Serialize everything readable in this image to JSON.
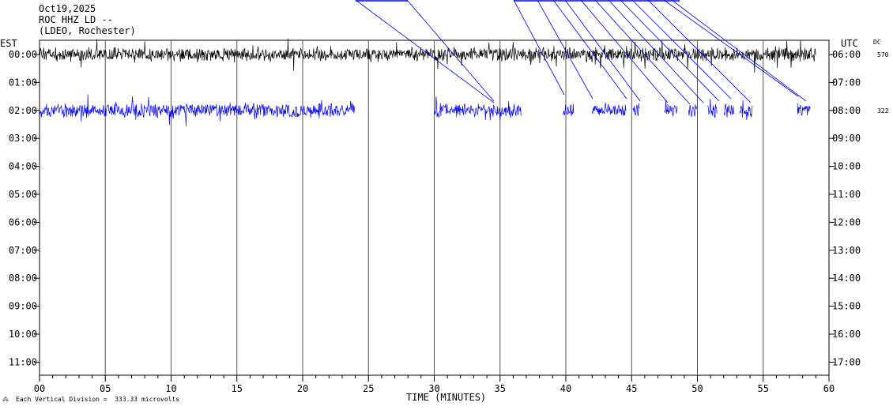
{
  "header": {
    "date": "Oct19,2025",
    "station": "ROC HHZ LD --",
    "network": "(LDEO, Rochester)"
  },
  "left_zone": "EST",
  "right_zone": "UTC",
  "dc_label": "DC",
  "xlabel": "TIME (MINUTES)",
  "footer": "Each Vertical Division =  333.33 microvolts",
  "chart_data": {
    "type": "line",
    "title": "",
    "xlabel": "TIME (MINUTES)",
    "xlim": [
      0,
      60
    ],
    "x_ticks": [
      "00",
      "05",
      "10",
      "15",
      "20",
      "25",
      "30",
      "35",
      "40",
      "45",
      "50",
      "55",
      "60"
    ],
    "left_hours": [
      "00:00",
      "01:00",
      "02:00",
      "03:00",
      "04:00",
      "05:00",
      "06:00",
      "07:00",
      "08:00",
      "09:00",
      "10:00",
      "11:00"
    ],
    "right_hours": [
      "06:00",
      "07:00",
      "08:00",
      "09:00",
      "10:00",
      "11:00",
      "12:00",
      "13:00",
      "14:00",
      "15:00",
      "16:00",
      "17:00"
    ],
    "trace_dc": [
      {
        "row": "00:00",
        "value": "570"
      },
      {
        "row": "02:00",
        "value": "322"
      }
    ],
    "series": [
      {
        "row": 0,
        "color": "#000000",
        "segments": [
          [
            0,
            59
          ]
        ]
      },
      {
        "row": 2,
        "color": "#0000ff",
        "segments": [
          [
            0,
            24
          ],
          [
            30,
            36.6
          ],
          [
            39.8,
            40.6
          ],
          [
            42,
            44.6
          ],
          [
            45.1,
            45.6
          ],
          [
            47.5,
            48.5
          ],
          [
            49.3,
            50
          ],
          [
            50.8,
            51.5
          ],
          [
            52,
            52.8
          ],
          [
            53.2,
            54.2
          ],
          [
            57.6,
            58.6
          ]
        ]
      }
    ],
    "grid": true
  }
}
